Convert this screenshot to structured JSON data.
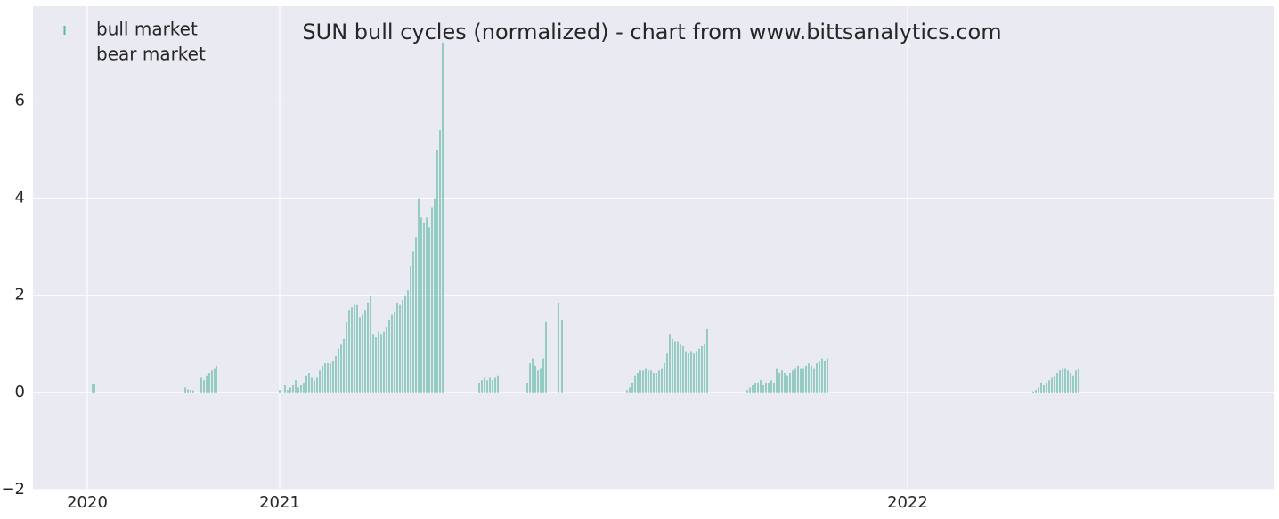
{
  "chart_data": {
    "type": "bar",
    "title": "SUN bull cycles (normalized)  - chart from www.bittsanalytics.com",
    "xlim": [
      0,
      1393
    ],
    "xticks": [
      {
        "value": 61,
        "label": "2020"
      },
      {
        "value": 277,
        "label": "2021"
      },
      {
        "value": 982,
        "label": "2022"
      }
    ],
    "ylim": [
      -2,
      7.95
    ],
    "yticks": [
      {
        "value": -2,
        "label": "−2"
      },
      0,
      2,
      4,
      6
    ],
    "grid": true,
    "legend": "upper left",
    "series": [
      {
        "name": "bull market",
        "color": "#5ab8a6",
        "x": [
          67,
          69,
          171,
          174,
          177,
          180,
          189,
          192,
          195,
          198,
          201,
          204,
          206,
          277,
          283,
          286,
          289,
          292,
          295,
          298,
          301,
          304,
          307,
          310,
          313,
          316,
          319,
          322,
          325,
          328,
          331,
          334,
          337,
          340,
          343,
          346,
          349,
          352,
          355,
          358,
          361,
          364,
          367,
          370,
          373,
          376,
          379,
          382,
          385,
          388,
          391,
          394,
          397,
          400,
          403,
          406,
          409,
          412,
          415,
          418,
          421,
          424,
          427,
          430,
          433,
          436,
          439,
          442,
          445,
          448,
          451,
          454,
          457,
          460,
          501,
          504,
          507,
          510,
          513,
          516,
          519,
          522,
          555,
          558,
          561,
          564,
          567,
          570,
          573,
          576,
          590,
          594,
          667,
          670,
          673,
          676,
          679,
          682,
          685,
          688,
          691,
          694,
          697,
          700,
          703,
          706,
          709,
          712,
          715,
          718,
          721,
          724,
          727,
          730,
          733,
          736,
          739,
          742,
          745,
          748,
          751,
          754,
          757,
          802,
          805,
          808,
          811,
          814,
          817,
          820,
          823,
          826,
          829,
          832,
          835,
          838,
          841,
          844,
          847,
          850,
          853,
          856,
          859,
          862,
          865,
          868,
          871,
          874,
          877,
          880,
          883,
          886,
          889,
          892,
          1123,
          1126,
          1129,
          1132,
          1135,
          1138,
          1141,
          1144,
          1147,
          1150,
          1153,
          1156,
          1159,
          1162,
          1165,
          1168,
          1171,
          1174
        ],
        "values": [
          0.18,
          0.18,
          0.1,
          0.06,
          0.05,
          0.04,
          0.3,
          0.25,
          0.35,
          0.4,
          0.45,
          0.5,
          0.55,
          0.05,
          0.15,
          0.05,
          0.1,
          0.15,
          0.25,
          0.1,
          0.15,
          0.2,
          0.35,
          0.4,
          0.3,
          0.25,
          0.3,
          0.45,
          0.55,
          0.6,
          0.6,
          0.6,
          0.65,
          0.75,
          0.9,
          1.0,
          1.1,
          1.45,
          1.7,
          1.75,
          1.8,
          1.8,
          1.55,
          1.6,
          1.7,
          1.85,
          2.0,
          1.2,
          1.15,
          1.25,
          1.2,
          1.25,
          1.35,
          1.5,
          1.6,
          1.65,
          1.85,
          1.8,
          1.9,
          2.0,
          2.1,
          2.6,
          2.9,
          3.2,
          4.0,
          3.6,
          3.5,
          3.6,
          3.4,
          3.8,
          4.0,
          5.0,
          5.4,
          7.2,
          0.2,
          0.25,
          0.3,
          0.25,
          0.3,
          0.25,
          0.3,
          0.35,
          0.2,
          0.6,
          0.7,
          0.55,
          0.45,
          0.5,
          0.7,
          1.45,
          1.85,
          1.5,
          0.05,
          0.1,
          0.2,
          0.35,
          0.4,
          0.45,
          0.45,
          0.5,
          0.45,
          0.45,
          0.4,
          0.4,
          0.45,
          0.5,
          0.6,
          0.8,
          1.2,
          1.1,
          1.05,
          1.05,
          1.0,
          0.95,
          0.85,
          0.8,
          0.85,
          0.8,
          0.85,
          0.9,
          0.95,
          1.0,
          1.3,
          0.05,
          0.1,
          0.15,
          0.2,
          0.2,
          0.25,
          0.15,
          0.2,
          0.2,
          0.25,
          0.2,
          0.5,
          0.4,
          0.45,
          0.4,
          0.35,
          0.4,
          0.45,
          0.5,
          0.55,
          0.5,
          0.5,
          0.55,
          0.6,
          0.55,
          0.5,
          0.6,
          0.65,
          0.7,
          0.65,
          0.7,
          0.02,
          0.05,
          0.1,
          0.2,
          0.15,
          0.2,
          0.25,
          0.3,
          0.35,
          0.4,
          0.45,
          0.5,
          0.5,
          0.45,
          0.4,
          0.35,
          0.45,
          0.5
        ]
      },
      {
        "name": "bear market",
        "color": "#eaeaf2",
        "x": [],
        "values": []
      }
    ]
  }
}
